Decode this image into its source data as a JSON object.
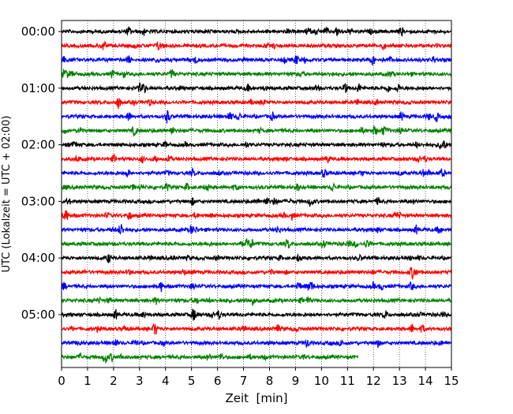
{
  "chart_data": {
    "type": "line",
    "subtype": "helicorder",
    "xlabel": "Zeit  [min]",
    "ylabel": "UTC (Lokalzeit = UTC + 02:00)",
    "xlim": [
      0,
      15
    ],
    "x_ticks": [
      "0",
      "1",
      "2",
      "3",
      "4",
      "5",
      "6",
      "7",
      "8",
      "9",
      "10",
      "11",
      "12",
      "13",
      "14",
      "15"
    ],
    "y_ticks": [
      "00:00",
      "01:00",
      "02:00",
      "03:00",
      "04:00",
      "05:00"
    ],
    "grid": "vertical-dotted",
    "traces_per_hour": 4,
    "minutes_per_trace": 15,
    "trace_count": 24,
    "last_trace_end_minute": 11.4,
    "colors": [
      "#000000",
      "#ff0000",
      "#0000ff",
      "#008000"
    ],
    "series": [
      {
        "start": "00:00",
        "color": "#000000"
      },
      {
        "start": "00:15",
        "color": "#ff0000"
      },
      {
        "start": "00:30",
        "color": "#0000ff"
      },
      {
        "start": "00:45",
        "color": "#008000"
      },
      {
        "start": "01:00",
        "color": "#000000"
      },
      {
        "start": "01:15",
        "color": "#ff0000"
      },
      {
        "start": "01:30",
        "color": "#0000ff"
      },
      {
        "start": "01:45",
        "color": "#008000"
      },
      {
        "start": "02:00",
        "color": "#000000"
      },
      {
        "start": "02:15",
        "color": "#ff0000"
      },
      {
        "start": "02:30",
        "color": "#0000ff"
      },
      {
        "start": "02:45",
        "color": "#008000"
      },
      {
        "start": "03:00",
        "color": "#000000"
      },
      {
        "start": "03:15",
        "color": "#ff0000"
      },
      {
        "start": "03:30",
        "color": "#0000ff"
      },
      {
        "start": "03:45",
        "color": "#008000"
      },
      {
        "start": "04:00",
        "color": "#000000"
      },
      {
        "start": "04:15",
        "color": "#ff0000"
      },
      {
        "start": "04:30",
        "color": "#0000ff"
      },
      {
        "start": "04:45",
        "color": "#008000"
      },
      {
        "start": "05:00",
        "color": "#000000"
      },
      {
        "start": "05:15",
        "color": "#ff0000"
      },
      {
        "start": "05:30",
        "color": "#0000ff"
      },
      {
        "start": "05:45",
        "color": "#008000"
      }
    ]
  }
}
